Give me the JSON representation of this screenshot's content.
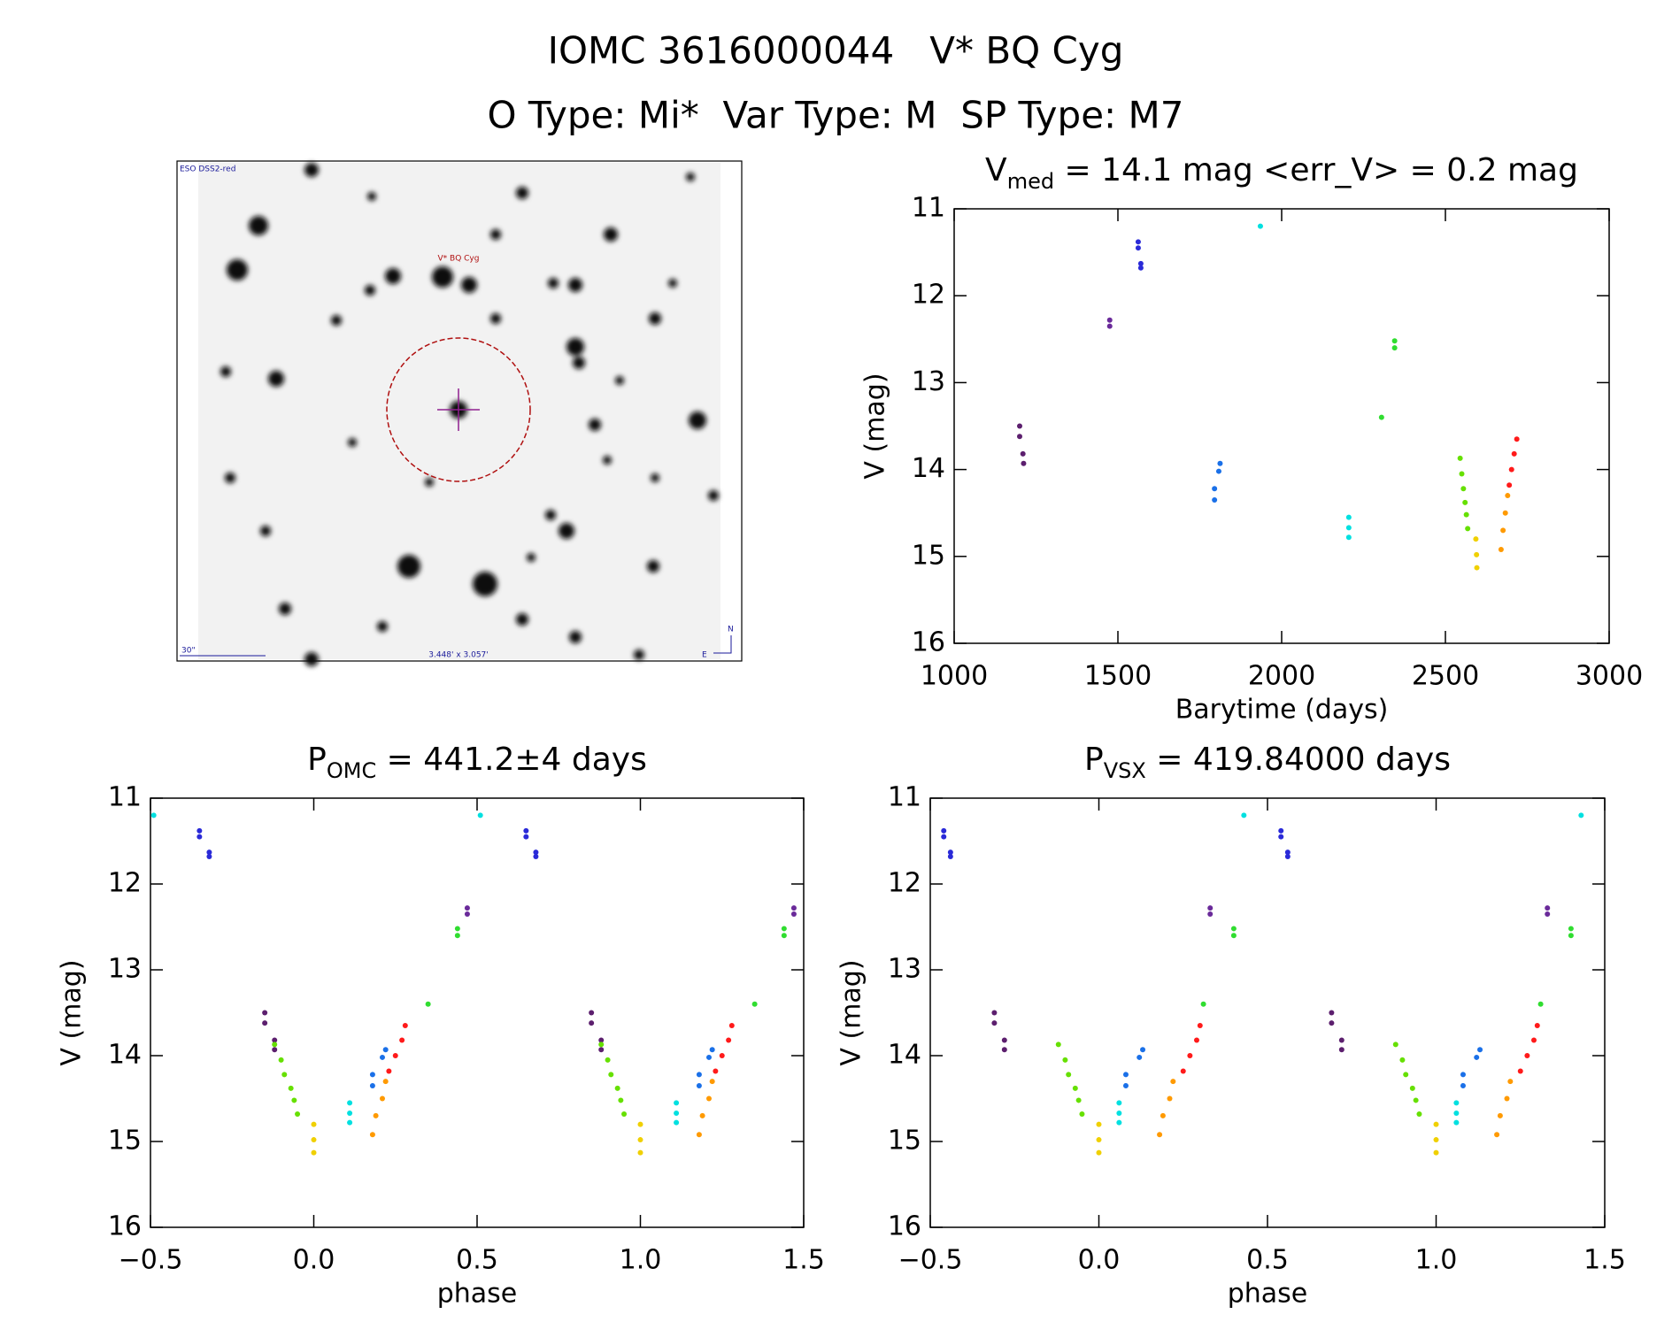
{
  "title": [
    "IOMC 3616000044   V* BQ Cyg",
    "O Type: Mi*  Var Type: M  SP Type: M7"
  ],
  "finder": {
    "survey": "ESO DSS2-red",
    "target": "V* BQ Cyg",
    "scale": "30\"",
    "fov": "3.448' x 3.057'",
    "north": "N",
    "east": "E"
  },
  "chart_data": [
    {
      "type": "scatter",
      "title": [
        "V",
        "med",
        " = 14.1 mag <err_V> = 0.2 mag"
      ],
      "x_label": "Barytime (days)",
      "y_label": "V (mag)",
      "xlim": [
        1000,
        3000
      ],
      "xticks": [
        1000,
        1500,
        2000,
        2500,
        3000
      ],
      "ylim": [
        11,
        16
      ],
      "y_inverted": true,
      "yticks": [
        11,
        12,
        13,
        14,
        15,
        16
      ],
      "grid": false,
      "series": [
        {
          "color": "#5c1f6e",
          "x": [
            1200,
            1200,
            1210,
            1212
          ],
          "values": [
            13.5,
            13.62,
            13.82,
            13.93
          ]
        },
        {
          "color": "#6a2a9a",
          "x": [
            1475,
            1475
          ],
          "values": [
            12.28,
            12.35
          ]
        },
        {
          "color": "#2a2ad8",
          "x": [
            1562,
            1562,
            1570,
            1570
          ],
          "values": [
            11.38,
            11.45,
            11.63,
            11.68
          ]
        },
        {
          "color": "#1a70e8",
          "x": [
            1795,
            1795,
            1808,
            1812
          ],
          "values": [
            14.35,
            14.22,
            14.02,
            13.93
          ]
        },
        {
          "color": "#00e0e0",
          "x": [
            1935,
            2205,
            2205,
            2205
          ],
          "values": [
            11.2,
            14.55,
            14.67,
            14.78
          ]
        },
        {
          "color": "#30dd30",
          "x": [
            2305,
            2345,
            2345
          ],
          "values": [
            13.4,
            12.52,
            12.6
          ]
        },
        {
          "color": "#66e000",
          "x": [
            2545,
            2550,
            2555,
            2560,
            2564,
            2568
          ],
          "values": [
            13.87,
            14.05,
            14.22,
            14.38,
            14.52,
            14.68
          ]
        },
        {
          "color": "#f0d000",
          "x": [
            2593,
            2595,
            2596
          ],
          "values": [
            14.8,
            14.98,
            15.13
          ]
        },
        {
          "color": "#ff9a00",
          "x": [
            2670,
            2676,
            2683,
            2690
          ],
          "values": [
            14.92,
            14.7,
            14.5,
            14.3
          ]
        },
        {
          "color": "#ff1a1a",
          "x": [
            2695,
            2702,
            2710,
            2718
          ],
          "values": [
            14.18,
            14.0,
            13.82,
            13.65
          ]
        }
      ]
    },
    {
      "type": "scatter",
      "title": [
        "P",
        "OMC",
        " = 441.2±4 days"
      ],
      "x_label": "phase",
      "y_label": "V (mag)",
      "xlim": [
        -0.5,
        1.5
      ],
      "xticks": [
        {
          "value": -0.5,
          "label": "−0.5"
        },
        {
          "value": 0,
          "label": "0.0"
        },
        0.5,
        {
          "value": 1,
          "label": "1.0"
        },
        1.5
      ],
      "ylim": [
        11,
        16
      ],
      "y_inverted": true,
      "yticks": [
        11,
        12,
        13,
        14,
        15,
        16
      ],
      "grid": false,
      "series": [
        {
          "color": "#5c1f6e",
          "x": [
            -0.15,
            -0.15,
            -0.12,
            -0.12,
            0.85,
            0.85,
            0.88,
            0.88
          ],
          "values": [
            13.5,
            13.62,
            13.82,
            13.93,
            13.5,
            13.62,
            13.82,
            13.93
          ]
        },
        {
          "color": "#6a2a9a",
          "x": [
            0.47,
            0.47,
            1.47,
            1.47
          ],
          "values": [
            12.28,
            12.35,
            12.28,
            12.35
          ]
        },
        {
          "color": "#2a2ad8",
          "x": [
            -0.35,
            -0.35,
            -0.32,
            -0.32,
            0.65,
            0.65,
            0.68,
            0.68
          ],
          "values": [
            11.38,
            11.45,
            11.63,
            11.68,
            11.38,
            11.45,
            11.63,
            11.68
          ]
        },
        {
          "color": "#1a70e8",
          "x": [
            0.18,
            0.18,
            0.21,
            0.22,
            1.18,
            1.18,
            1.21,
            1.22
          ],
          "values": [
            14.35,
            14.22,
            14.02,
            13.93,
            14.35,
            14.22,
            14.02,
            13.93
          ]
        },
        {
          "color": "#00e0e0",
          "x": [
            -0.49,
            0.11,
            0.11,
            0.11,
            0.51,
            1.11,
            1.11,
            1.11
          ],
          "values": [
            11.2,
            14.55,
            14.67,
            14.78,
            11.2,
            14.55,
            14.67,
            14.78
          ]
        },
        {
          "color": "#30dd30",
          "x": [
            0.35,
            0.44,
            0.44,
            1.35,
            1.44,
            1.44
          ],
          "values": [
            13.4,
            12.52,
            12.6,
            13.4,
            12.52,
            12.6
          ]
        },
        {
          "color": "#66e000",
          "x": [
            -0.12,
            -0.1,
            -0.09,
            -0.07,
            -0.06,
            -0.05,
            0.88,
            0.9,
            0.91,
            0.93,
            0.94,
            0.95
          ],
          "values": [
            13.87,
            14.05,
            14.22,
            14.38,
            14.52,
            14.68,
            13.87,
            14.05,
            14.22,
            14.38,
            14.52,
            14.68
          ]
        },
        {
          "color": "#f0d000",
          "x": [
            0,
            0,
            0,
            1,
            1,
            1
          ],
          "values": [
            14.8,
            14.98,
            15.13,
            14.8,
            14.98,
            15.13
          ]
        },
        {
          "color": "#ff9a00",
          "x": [
            0.18,
            0.19,
            0.21,
            0.22,
            1.18,
            1.19,
            1.21,
            1.22
          ],
          "values": [
            14.92,
            14.7,
            14.5,
            14.3,
            14.92,
            14.7,
            14.5,
            14.3
          ]
        },
        {
          "color": "#ff1a1a",
          "x": [
            0.23,
            0.25,
            0.27,
            0.28,
            1.23,
            1.25,
            1.27,
            1.28
          ],
          "values": [
            14.18,
            14.0,
            13.82,
            13.65,
            14.18,
            14.0,
            13.82,
            13.65
          ]
        }
      ]
    },
    {
      "type": "scatter",
      "title": [
        "P",
        "VSX",
        " = 419.84000 days"
      ],
      "x_label": "phase",
      "y_label": "V (mag)",
      "xlim": [
        -0.5,
        1.5
      ],
      "xticks": [
        {
          "value": -0.5,
          "label": "−0.5"
        },
        {
          "value": 0,
          "label": "0.0"
        },
        0.5,
        {
          "value": 1,
          "label": "1.0"
        },
        1.5
      ],
      "ylim": [
        11,
        16
      ],
      "y_inverted": true,
      "yticks": [
        11,
        12,
        13,
        14,
        15,
        16
      ],
      "grid": false,
      "series": [
        {
          "color": "#5c1f6e",
          "x": [
            -0.31,
            -0.31,
            -0.28,
            -0.28,
            0.69,
            0.69,
            0.72,
            0.72
          ],
          "values": [
            13.5,
            13.62,
            13.82,
            13.93,
            13.5,
            13.62,
            13.82,
            13.93
          ]
        },
        {
          "color": "#6a2a9a",
          "x": [
            0.33,
            0.33,
            1.33,
            1.33
          ],
          "values": [
            12.28,
            12.35,
            12.28,
            12.35
          ]
        },
        {
          "color": "#2a2ad8",
          "x": [
            -0.46,
            -0.46,
            -0.44,
            -0.44,
            0.54,
            0.54,
            0.56,
            0.56
          ],
          "values": [
            11.38,
            11.45,
            11.63,
            11.68,
            11.38,
            11.45,
            11.63,
            11.68
          ]
        },
        {
          "color": "#1a70e8",
          "x": [
            0.08,
            0.08,
            0.12,
            0.13,
            1.08,
            1.08,
            1.12,
            1.13
          ],
          "values": [
            14.35,
            14.22,
            14.02,
            13.93,
            14.35,
            14.22,
            14.02,
            13.93
          ]
        },
        {
          "color": "#00e0e0",
          "x": [
            0.43,
            0.06,
            0.06,
            0.06,
            1.43,
            1.06,
            1.06,
            1.06
          ],
          "values": [
            11.2,
            14.55,
            14.67,
            14.78,
            11.2,
            14.55,
            14.67,
            14.78
          ]
        },
        {
          "color": "#30dd30",
          "x": [
            0.31,
            0.4,
            0.4,
            1.31,
            1.4,
            1.4
          ],
          "values": [
            13.4,
            12.52,
            12.6,
            13.4,
            12.52,
            12.6
          ]
        },
        {
          "color": "#66e000",
          "x": [
            -0.12,
            -0.1,
            -0.09,
            -0.07,
            -0.06,
            -0.05,
            0.88,
            0.9,
            0.91,
            0.93,
            0.94,
            0.95
          ],
          "values": [
            13.87,
            14.05,
            14.22,
            14.38,
            14.52,
            14.68,
            13.87,
            14.05,
            14.22,
            14.38,
            14.52,
            14.68
          ]
        },
        {
          "color": "#f0d000",
          "x": [
            0,
            0,
            0,
            1,
            1,
            1
          ],
          "values": [
            14.8,
            14.98,
            15.13,
            14.8,
            14.98,
            15.13
          ]
        },
        {
          "color": "#ff9a00",
          "x": [
            0.18,
            0.19,
            0.21,
            0.22,
            1.18,
            1.19,
            1.21,
            1.22
          ],
          "values": [
            14.92,
            14.7,
            14.5,
            14.3,
            14.92,
            14.7,
            14.5,
            14.3
          ]
        },
        {
          "color": "#ff1a1a",
          "x": [
            0.25,
            0.27,
            0.29,
            0.3,
            1.25,
            1.27,
            1.29,
            1.3
          ],
          "values": [
            14.18,
            14.0,
            13.82,
            13.65,
            14.18,
            14.0,
            13.82,
            13.65
          ]
        }
      ]
    }
  ]
}
